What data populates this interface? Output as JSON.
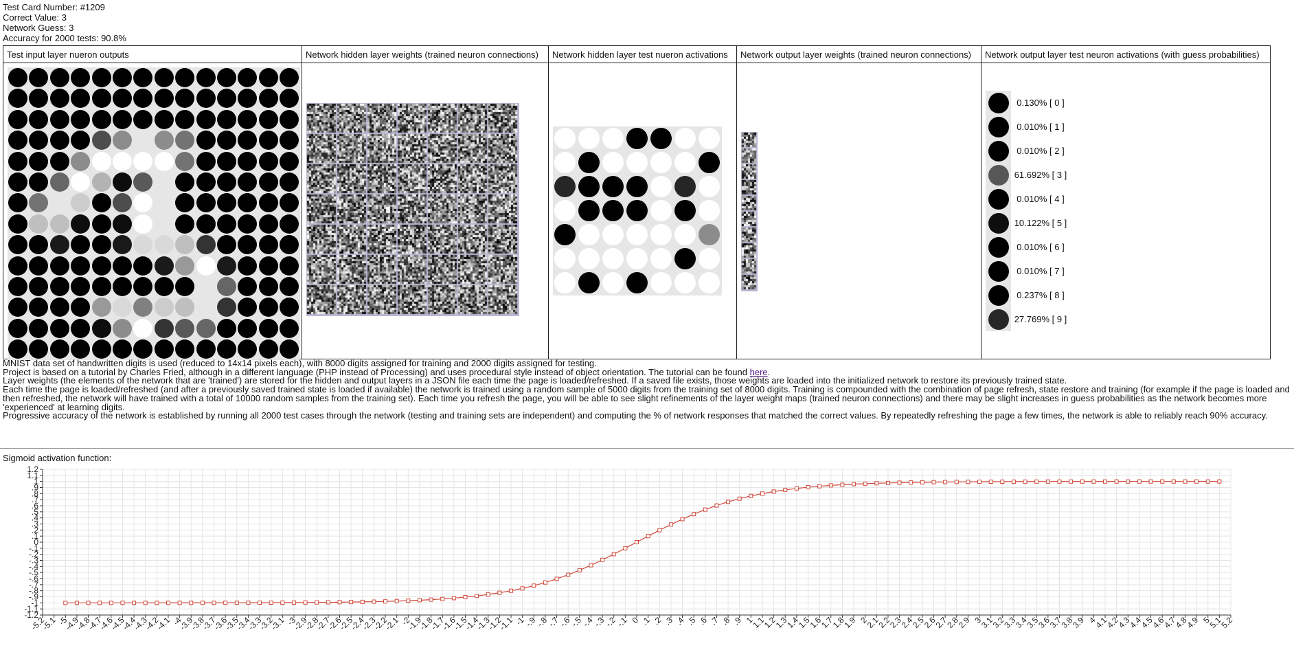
{
  "header": {
    "test_card": "Test Card Number: #1209",
    "correct_value": "Correct Value: 3",
    "network_guess": "Network Guess: 3",
    "accuracy": "Accuracy for 2000 tests: 90.8%"
  },
  "table": {
    "col1_title": "Test input layer nueron outputs",
    "col2_title": "Network hidden layer weights (trained neuron connections)",
    "col3_title": "Network hidden layer test nueron activations",
    "col4_title": "Network output layer weights (trained neuron connections)",
    "col5_title": "Network output layer test neuron activations (with guess probabilities)"
  },
  "input_grid": [
    [
      0,
      0,
      0,
      0,
      0,
      0,
      0,
      0,
      0,
      0,
      0,
      0,
      0,
      0
    ],
    [
      0,
      0,
      0,
      0,
      0,
      0,
      0,
      0,
      0,
      0,
      0,
      0,
      0,
      0
    ],
    [
      0,
      0,
      0,
      0,
      0,
      0,
      0,
      0,
      0,
      0,
      0,
      0,
      0,
      0
    ],
    [
      0,
      0,
      0,
      0,
      0.3,
      0.55,
      0.9,
      0.55,
      0.45,
      0,
      0,
      0,
      0,
      0
    ],
    [
      0,
      0,
      0,
      0.55,
      1,
      1,
      1,
      1,
      0.45,
      0,
      0,
      0,
      0,
      0
    ],
    [
      0,
      0,
      0.4,
      1,
      0.7,
      0.05,
      0.35,
      0.9,
      0,
      0,
      0,
      0,
      0,
      0
    ],
    [
      0,
      0.45,
      0.9,
      0.8,
      0,
      0.3,
      1,
      0.9,
      0,
      0,
      0,
      0,
      0,
      0
    ],
    [
      0,
      0.75,
      0.75,
      0.05,
      0,
      0.05,
      1,
      0.9,
      0,
      0,
      0,
      0,
      0,
      0
    ],
    [
      0,
      0,
      0.1,
      0,
      0,
      0.1,
      0.85,
      0.85,
      0.75,
      0.2,
      0,
      0,
      0,
      0
    ],
    [
      0,
      0,
      0,
      0,
      0,
      0,
      0,
      0.1,
      0.6,
      1,
      0.1,
      0,
      0,
      0
    ],
    [
      0,
      0,
      0,
      0,
      0,
      0,
      0,
      0,
      0,
      0.9,
      0.4,
      0,
      0,
      0
    ],
    [
      0,
      0,
      0,
      0,
      0.6,
      0.85,
      0.5,
      0.8,
      0.75,
      0.9,
      0.2,
      0,
      0,
      0
    ],
    [
      0,
      0,
      0,
      0,
      0.05,
      0.55,
      1,
      0.2,
      0.35,
      0.4,
      0,
      0,
      0,
      0
    ],
    [
      0,
      0,
      0,
      0,
      0,
      0,
      0,
      0,
      0,
      0,
      0,
      0,
      0,
      0
    ]
  ],
  "hidden_activations": [
    [
      1,
      1,
      1,
      0,
      0,
      1,
      1
    ],
    [
      1,
      0,
      1,
      1,
      1,
      1,
      0
    ],
    [
      0.15,
      0,
      0,
      0,
      1,
      0.15,
      1
    ],
    [
      1,
      0,
      0,
      0,
      1,
      0,
      1
    ],
    [
      0,
      1,
      1,
      1,
      1,
      1,
      0.55
    ],
    [
      1,
      1,
      1,
      1,
      1,
      0,
      1
    ],
    [
      1,
      0,
      1,
      0,
      1,
      1,
      1
    ]
  ],
  "outputs": [
    {
      "label": "0.130% [ 0 ]",
      "value": 0.0013
    },
    {
      "label": "0.010% [ 1 ]",
      "value": 0.0001
    },
    {
      "label": "0.010% [ 2 ]",
      "value": 0.0001
    },
    {
      "label": "61.692% [ 3 ]",
      "value": 0.61692
    },
    {
      "label": "0.010% [ 4 ]",
      "value": 0.0001
    },
    {
      "label": "10.122% [ 5 ]",
      "value": 0.10122
    },
    {
      "label": "0.010% [ 6 ]",
      "value": 0.0001
    },
    {
      "label": "0.010% [ 7 ]",
      "value": 0.0001
    },
    {
      "label": "0.237% [ 8 ]",
      "value": 0.00237
    },
    {
      "label": "27.769% [ 9 ]",
      "value": 0.27769
    }
  ],
  "notes": {
    "line1": "MNIST data set of handwritten digits is used (reduced to 14x14 pixels each), with 8000 digits assigned for training and 2000 digits assigned for testing.",
    "line2_pre": "Project is based on a tutorial by Charles Fried, although in a different language (PHP instead of Processing) and uses procedural style instead of object orientation. The tutorial can be found ",
    "line2_link": "here",
    "line2_post": ".",
    "line3": "Layer weights (the elements of the network that are 'trained') are stored for the hidden and output layers in a JSON file each time the page is loaded/refreshed. If a saved file exists, those weights are loaded into the initialized network to restore its previously trained state.",
    "line4": "Each time the page is loaded/refreshed (and after a previously saved trained state is loaded if available) the network is trained using a random sample of 5000 digits from the training set of 8000 digits. Training is compounded with the combination of page refresh, state restore and training (for example if the page is loaded and then refreshed, the network will have trained with a total of 10000 random samples from the training set). Each time you refresh the page, you will be able to see slight refinements of the layer weight maps (trained neuron connections) and there may be slight increases in guess probabilities as the network becomes more 'experienced' at learning digits.",
    "line5": "Progressive accuracy of the network is established by running all 2000 test cases through the network (testing and training sets are independent) and computing the % of network responses that matched the correct values. By repeatedly refreshing the page a few times, the network is able to reliably reach 90% accuracy."
  },
  "sigmoid_label": "Sigmoid activation function:",
  "chart_data": {
    "type": "line",
    "function": "2/(1+exp(-2x))-1",
    "x_start": -5,
    "x_end": 5.1,
    "x_step": 0.1,
    "xlim": [
      -5.2,
      5.2
    ],
    "ylim": [
      -1.2,
      1.2
    ],
    "x_tick_step": 0.1,
    "y_tick_step": 0.1,
    "grid": true,
    "series_color": "#d0483a"
  }
}
